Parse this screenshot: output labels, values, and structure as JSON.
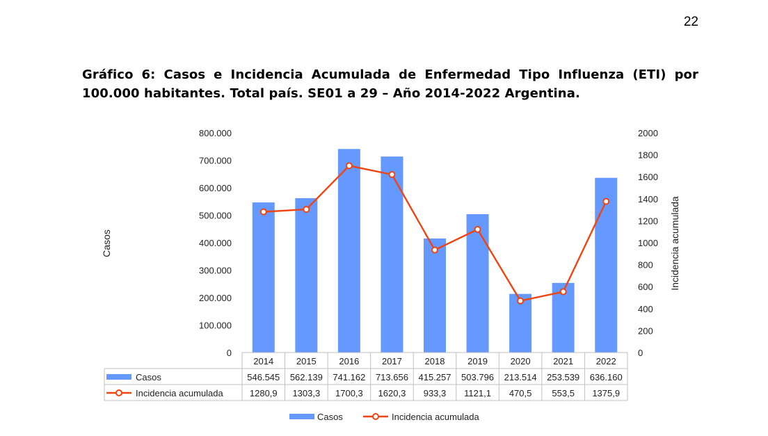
{
  "page_number": "22",
  "title": "Gráfico 6: Casos e Incidencia Acumulada de Enfermedad Tipo Influenza (ETI) por 100.000 habitantes. Total país. SE01 a 29 – Año 2014-2022 Argentina.",
  "colors": {
    "bars": "#6699ff",
    "line": "#ee4411",
    "marker_fill": "#ffffff",
    "grid": "#d0d0d0"
  },
  "chart_data": {
    "type": "bar",
    "title": "Gráfico 6: Casos e Incidencia Acumulada de Enfermedad Tipo Influenza (ETI) por 100.000 habitantes. Total país. SE01 a 29 – Año 2014-2022 Argentina.",
    "categories": [
      "2014",
      "2015",
      "2016",
      "2017",
      "2018",
      "2019",
      "2020",
      "2021",
      "2022"
    ],
    "series": [
      {
        "name": "Casos",
        "type": "bar",
        "axis": "left",
        "values": [
          546545,
          562139,
          741162,
          713656,
          415257,
          503796,
          213514,
          253539,
          636160
        ],
        "labels": [
          "546.545",
          "562.139",
          "741.162",
          "713.656",
          "415.257",
          "503.796",
          "213.514",
          "253.539",
          "636.160"
        ]
      },
      {
        "name": "Incidencia acumulada",
        "type": "line",
        "axis": "right",
        "values": [
          1280.9,
          1303.3,
          1700.3,
          1620.3,
          933.3,
          1121.1,
          470.5,
          553.5,
          1375.9
        ],
        "labels": [
          "1280,9",
          "1303,3",
          "1700,3",
          "1620,3",
          "933,3",
          "1121,1",
          "470,5",
          "553,5",
          "1375,9"
        ]
      }
    ],
    "ylabel": "Casos",
    "y2label": "Incidencia acumulada",
    "ylim": [
      0,
      800000
    ],
    "y2lim": [
      0,
      2000
    ],
    "yticks": [
      0,
      100000,
      200000,
      300000,
      400000,
      500000,
      600000,
      700000,
      800000
    ],
    "ytick_labels": [
      "0",
      "100.000",
      "200.000",
      "300.000",
      "400.000",
      "500.000",
      "600.000",
      "700.000",
      "800.000"
    ],
    "y2ticks": [
      0,
      200,
      400,
      600,
      800,
      1000,
      1200,
      1400,
      1600,
      1800,
      2000
    ],
    "y2tick_labels": [
      "0",
      "200",
      "400",
      "600",
      "800",
      "1000",
      "1200",
      "1400",
      "1600",
      "1800",
      "2000"
    ],
    "grid": false,
    "data_table": true,
    "legend": [
      "Casos",
      "Incidencia acumulada"
    ],
    "legend_position": "bottom"
  }
}
